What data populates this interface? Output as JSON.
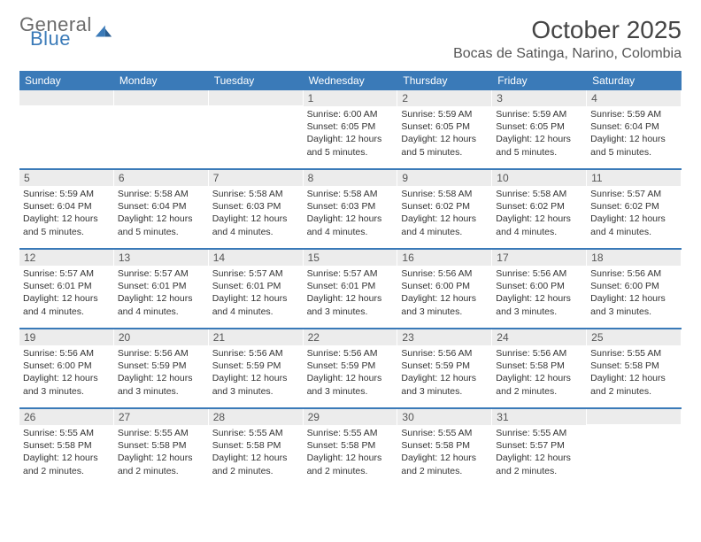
{
  "brand": {
    "word1": "General",
    "word2": "Blue",
    "color_gray": "#6b6b6b",
    "color_blue": "#3a7ab8"
  },
  "title": "October 2025",
  "location": "Bocas de Satinga, Narino, Colombia",
  "colors": {
    "header_bg": "#3a7ab8",
    "header_text": "#ffffff",
    "daynum_bg": "#ececec",
    "text": "#333333",
    "rule": "#3a7ab8",
    "background": "#ffffff"
  },
  "dow": [
    "Sunday",
    "Monday",
    "Tuesday",
    "Wednesday",
    "Thursday",
    "Friday",
    "Saturday"
  ],
  "weeks": [
    [
      {
        "n": "",
        "sr": "",
        "ss": "",
        "dl": ""
      },
      {
        "n": "",
        "sr": "",
        "ss": "",
        "dl": ""
      },
      {
        "n": "",
        "sr": "",
        "ss": "",
        "dl": ""
      },
      {
        "n": "1",
        "sr": "6:00 AM",
        "ss": "6:05 PM",
        "dl": "12 hours and 5 minutes."
      },
      {
        "n": "2",
        "sr": "5:59 AM",
        "ss": "6:05 PM",
        "dl": "12 hours and 5 minutes."
      },
      {
        "n": "3",
        "sr": "5:59 AM",
        "ss": "6:05 PM",
        "dl": "12 hours and 5 minutes."
      },
      {
        "n": "4",
        "sr": "5:59 AM",
        "ss": "6:04 PM",
        "dl": "12 hours and 5 minutes."
      }
    ],
    [
      {
        "n": "5",
        "sr": "5:59 AM",
        "ss": "6:04 PM",
        "dl": "12 hours and 5 minutes."
      },
      {
        "n": "6",
        "sr": "5:58 AM",
        "ss": "6:04 PM",
        "dl": "12 hours and 5 minutes."
      },
      {
        "n": "7",
        "sr": "5:58 AM",
        "ss": "6:03 PM",
        "dl": "12 hours and 4 minutes."
      },
      {
        "n": "8",
        "sr": "5:58 AM",
        "ss": "6:03 PM",
        "dl": "12 hours and 4 minutes."
      },
      {
        "n": "9",
        "sr": "5:58 AM",
        "ss": "6:02 PM",
        "dl": "12 hours and 4 minutes."
      },
      {
        "n": "10",
        "sr": "5:58 AM",
        "ss": "6:02 PM",
        "dl": "12 hours and 4 minutes."
      },
      {
        "n": "11",
        "sr": "5:57 AM",
        "ss": "6:02 PM",
        "dl": "12 hours and 4 minutes."
      }
    ],
    [
      {
        "n": "12",
        "sr": "5:57 AM",
        "ss": "6:01 PM",
        "dl": "12 hours and 4 minutes."
      },
      {
        "n": "13",
        "sr": "5:57 AM",
        "ss": "6:01 PM",
        "dl": "12 hours and 4 minutes."
      },
      {
        "n": "14",
        "sr": "5:57 AM",
        "ss": "6:01 PM",
        "dl": "12 hours and 4 minutes."
      },
      {
        "n": "15",
        "sr": "5:57 AM",
        "ss": "6:01 PM",
        "dl": "12 hours and 3 minutes."
      },
      {
        "n": "16",
        "sr": "5:56 AM",
        "ss": "6:00 PM",
        "dl": "12 hours and 3 minutes."
      },
      {
        "n": "17",
        "sr": "5:56 AM",
        "ss": "6:00 PM",
        "dl": "12 hours and 3 minutes."
      },
      {
        "n": "18",
        "sr": "5:56 AM",
        "ss": "6:00 PM",
        "dl": "12 hours and 3 minutes."
      }
    ],
    [
      {
        "n": "19",
        "sr": "5:56 AM",
        "ss": "6:00 PM",
        "dl": "12 hours and 3 minutes."
      },
      {
        "n": "20",
        "sr": "5:56 AM",
        "ss": "5:59 PM",
        "dl": "12 hours and 3 minutes."
      },
      {
        "n": "21",
        "sr": "5:56 AM",
        "ss": "5:59 PM",
        "dl": "12 hours and 3 minutes."
      },
      {
        "n": "22",
        "sr": "5:56 AM",
        "ss": "5:59 PM",
        "dl": "12 hours and 3 minutes."
      },
      {
        "n": "23",
        "sr": "5:56 AM",
        "ss": "5:59 PM",
        "dl": "12 hours and 3 minutes."
      },
      {
        "n": "24",
        "sr": "5:56 AM",
        "ss": "5:58 PM",
        "dl": "12 hours and 2 minutes."
      },
      {
        "n": "25",
        "sr": "5:55 AM",
        "ss": "5:58 PM",
        "dl": "12 hours and 2 minutes."
      }
    ],
    [
      {
        "n": "26",
        "sr": "5:55 AM",
        "ss": "5:58 PM",
        "dl": "12 hours and 2 minutes."
      },
      {
        "n": "27",
        "sr": "5:55 AM",
        "ss": "5:58 PM",
        "dl": "12 hours and 2 minutes."
      },
      {
        "n": "28",
        "sr": "5:55 AM",
        "ss": "5:58 PM",
        "dl": "12 hours and 2 minutes."
      },
      {
        "n": "29",
        "sr": "5:55 AM",
        "ss": "5:58 PM",
        "dl": "12 hours and 2 minutes."
      },
      {
        "n": "30",
        "sr": "5:55 AM",
        "ss": "5:58 PM",
        "dl": "12 hours and 2 minutes."
      },
      {
        "n": "31",
        "sr": "5:55 AM",
        "ss": "5:57 PM",
        "dl": "12 hours and 2 minutes."
      },
      {
        "n": "",
        "sr": "",
        "ss": "",
        "dl": ""
      }
    ]
  ],
  "labels": {
    "sunrise": "Sunrise:",
    "sunset": "Sunset:",
    "daylight": "Daylight:"
  }
}
